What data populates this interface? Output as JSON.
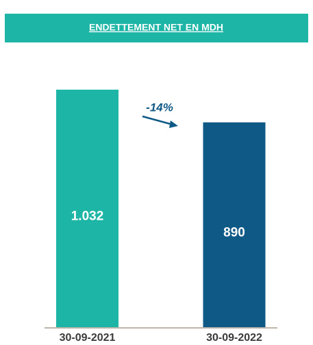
{
  "chart_data": {
    "type": "bar",
    "title": "ENDETTEMENT NET EN MDH",
    "categories": [
      "30-09-2021",
      "30-09-2022"
    ],
    "values": [
      1032,
      890
    ],
    "value_labels": [
      "1.032",
      "890"
    ],
    "colors": [
      "#1db5a6",
      "#0f5986"
    ],
    "annotation": "-14%"
  }
}
